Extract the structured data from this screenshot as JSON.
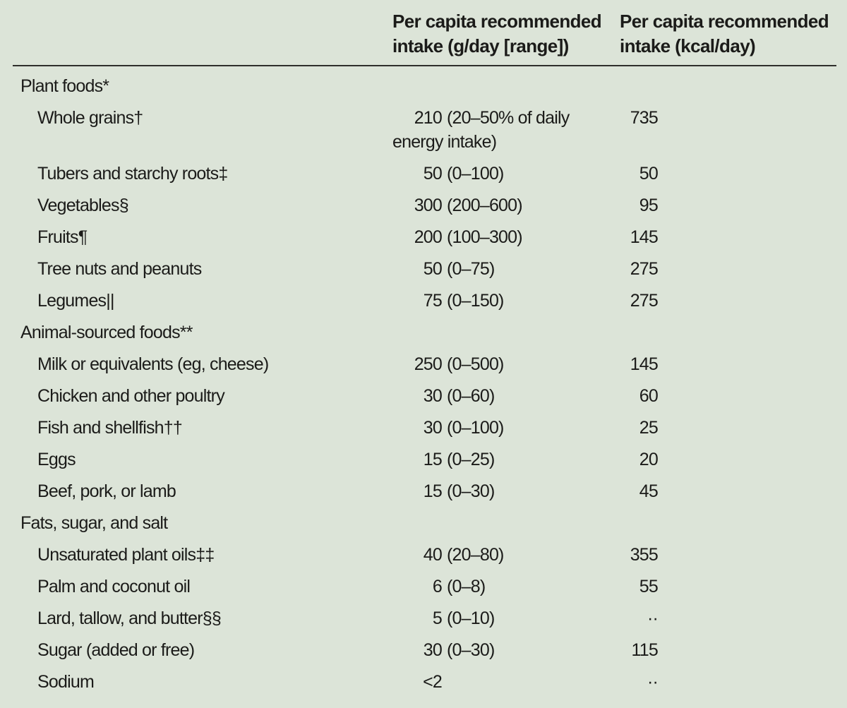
{
  "page": {
    "background_color": "#dce4d8",
    "text_color": "#1b1b19",
    "rule_color": "#2f2f2c"
  },
  "table": {
    "header": {
      "col2": "Per capita recommended intake (g/day [range])",
      "col3": "Per capita recommended intake (kcal/day)"
    },
    "rows": [
      {
        "label": "Plant foods*",
        "section": true,
        "gday_num": "",
        "gday_range": "",
        "kcal": ""
      },
      {
        "label": "Whole grains†",
        "section": false,
        "gday_num": "210",
        "gday_range": "(20–50% of daily energy intake)",
        "kcal": "735"
      },
      {
        "label": "Tubers and starchy roots‡",
        "section": false,
        "gday_num": "50",
        "gday_range": "(0–100)",
        "kcal": "50"
      },
      {
        "label": "Vegetables§",
        "section": false,
        "gday_num": "300",
        "gday_range": "(200–600)",
        "kcal": "95"
      },
      {
        "label": "Fruits¶",
        "section": false,
        "gday_num": "200",
        "gday_range": "(100–300)",
        "kcal": "145"
      },
      {
        "label": "Tree nuts and peanuts",
        "section": false,
        "gday_num": "50",
        "gday_range": "(0–75)",
        "kcal": "275"
      },
      {
        "label": "Legumes||",
        "section": false,
        "gday_num": "75",
        "gday_range": "(0–150)",
        "kcal": "275"
      },
      {
        "label": "Animal-sourced foods**",
        "section": true,
        "gday_num": "",
        "gday_range": "",
        "kcal": ""
      },
      {
        "label": "Milk or equivalents (eg, cheese)",
        "section": false,
        "gday_num": "250",
        "gday_range": "(0–500)",
        "kcal": "145"
      },
      {
        "label": "Chicken and other poultry",
        "section": false,
        "gday_num": "30",
        "gday_range": "(0–60)",
        "kcal": "60"
      },
      {
        "label": "Fish and shellfish††",
        "section": false,
        "gday_num": "30",
        "gday_range": "(0–100)",
        "kcal": "25"
      },
      {
        "label": "Eggs",
        "section": false,
        "gday_num": "15",
        "gday_range": "(0–25)",
        "kcal": "20"
      },
      {
        "label": "Beef, pork, or lamb",
        "section": false,
        "gday_num": "15",
        "gday_range": "(0–30)",
        "kcal": "45"
      },
      {
        "label": "Fats, sugar, and salt",
        "section": true,
        "gday_num": "",
        "gday_range": "",
        "kcal": ""
      },
      {
        "label": "Unsaturated plant oils‡‡",
        "section": false,
        "gday_num": "40",
        "gday_range": "(20–80)",
        "kcal": "355"
      },
      {
        "label": "Palm and coconut oil",
        "section": false,
        "gday_num": "6",
        "gday_range": "(0–8)",
        "kcal": "55"
      },
      {
        "label": "Lard, tallow, and butter§§",
        "section": false,
        "gday_num": "5",
        "gday_range": "(0–10)",
        "kcal": "··"
      },
      {
        "label": "Sugar (added or free)",
        "section": false,
        "gday_num": "30",
        "gday_range": "(0–30)",
        "kcal": "115"
      },
      {
        "label": "Sodium",
        "section": false,
        "gday_num": "<2",
        "gday_range": "",
        "kcal": "··"
      }
    ]
  }
}
